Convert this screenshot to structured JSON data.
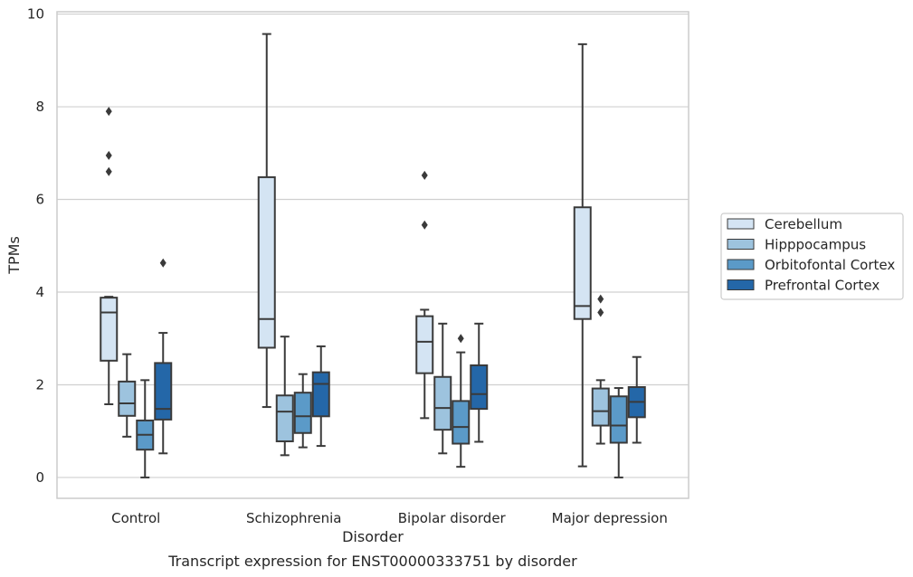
{
  "chart_data": {
    "type": "box",
    "title": "Transcript expression for ENST00000333751 by disorder",
    "xlabel": "Disorder",
    "ylabel": "TPMs",
    "categories": [
      "Control",
      "Schizophrenia",
      "Bipolar disorder",
      "Major depression"
    ],
    "yticks": [
      0,
      2,
      4,
      6,
      8,
      10
    ],
    "ylim": [
      -0.45,
      10.05
    ],
    "grid": true,
    "legend_position": "right",
    "series": [
      {
        "name": "Cerebellum",
        "color": "#d4e4f3",
        "boxes": [
          {
            "whislo": 1.58,
            "q1": 2.52,
            "med": 3.56,
            "q3": 3.88,
            "whishi": 3.9,
            "fliers": [
              7.9,
              6.95,
              6.6
            ]
          },
          {
            "whislo": 1.52,
            "q1": 2.8,
            "med": 3.42,
            "q3": 6.48,
            "whishi": 9.57,
            "fliers": []
          },
          {
            "whislo": 1.28,
            "q1": 2.25,
            "med": 2.93,
            "q3": 3.48,
            "whishi": 3.62,
            "fliers": [
              6.52,
              5.45
            ]
          },
          {
            "whislo": 0.24,
            "q1": 3.42,
            "med": 3.7,
            "q3": 5.83,
            "whishi": 9.35,
            "fliers": []
          }
        ]
      },
      {
        "name": "Hipppocampus",
        "color": "#9dc3de",
        "boxes": [
          {
            "whislo": 0.88,
            "q1": 1.33,
            "med": 1.6,
            "q3": 2.07,
            "whishi": 2.66,
            "fliers": []
          },
          {
            "whislo": 0.48,
            "q1": 0.78,
            "med": 1.42,
            "q3": 1.77,
            "whishi": 3.04,
            "fliers": []
          },
          {
            "whislo": 0.52,
            "q1": 1.03,
            "med": 1.5,
            "q3": 2.17,
            "whishi": 3.32,
            "fliers": []
          },
          {
            "whislo": 0.73,
            "q1": 1.12,
            "med": 1.43,
            "q3": 1.92,
            "whishi": 2.1,
            "fliers": [
              3.85,
              3.56
            ]
          }
        ]
      },
      {
        "name": "Orbitofontal Cortex",
        "color": "#5b9ac8",
        "boxes": [
          {
            "whislo": 0.0,
            "q1": 0.6,
            "med": 0.92,
            "q3": 1.23,
            "whishi": 2.1,
            "fliers": []
          },
          {
            "whislo": 0.65,
            "q1": 0.96,
            "med": 1.32,
            "q3": 1.83,
            "whishi": 2.23,
            "fliers": []
          },
          {
            "whislo": 0.23,
            "q1": 0.73,
            "med": 1.09,
            "q3": 1.65,
            "whishi": 2.7,
            "fliers": [
              3.0
            ]
          },
          {
            "whislo": 0.0,
            "q1": 0.75,
            "med": 1.12,
            "q3": 1.75,
            "whishi": 1.93,
            "fliers": []
          }
        ]
      },
      {
        "name": "Prefrontal Cortex",
        "color": "#2467a8",
        "boxes": [
          {
            "whislo": 0.52,
            "q1": 1.25,
            "med": 1.48,
            "q3": 2.47,
            "whishi": 3.12,
            "fliers": [
              4.63
            ]
          },
          {
            "whislo": 0.68,
            "q1": 1.32,
            "med": 2.02,
            "q3": 2.27,
            "whishi": 2.83,
            "fliers": []
          },
          {
            "whislo": 0.77,
            "q1": 1.48,
            "med": 1.8,
            "q3": 2.42,
            "whishi": 3.32,
            "fliers": []
          },
          {
            "whislo": 0.75,
            "q1": 1.3,
            "med": 1.63,
            "q3": 1.95,
            "whishi": 2.6,
            "fliers": []
          }
        ]
      }
    ]
  }
}
